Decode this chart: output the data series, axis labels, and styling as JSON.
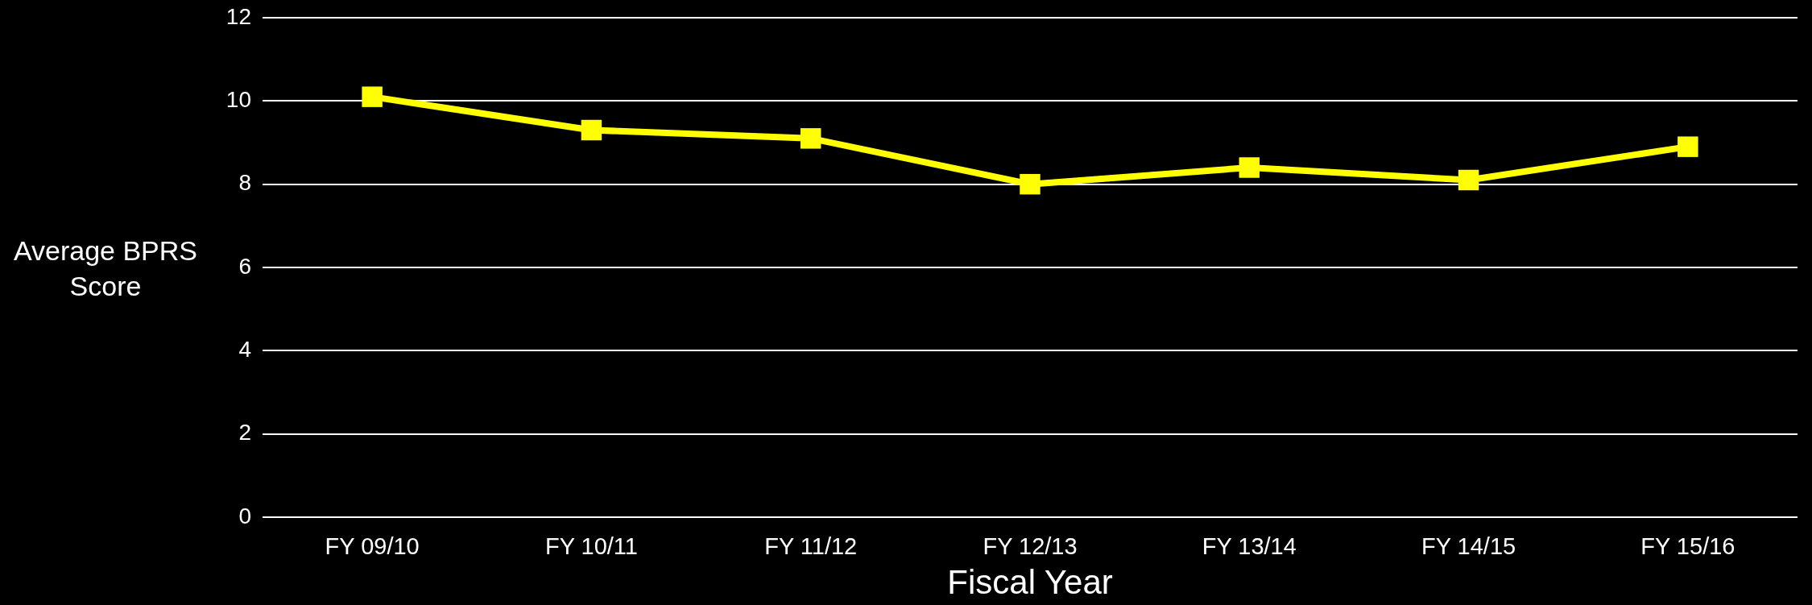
{
  "chart_data": {
    "type": "line",
    "xlabel": "Fiscal Year",
    "ylabel": "Average BPRS Score",
    "categories": [
      "FY 09/10",
      "FY 10/11",
      "FY 11/12",
      "FY 12/13",
      "FY 13/14",
      "FY 14/15",
      "FY 15/16"
    ],
    "series": [
      {
        "color": "#ffff00",
        "values": [
          10.1,
          9.3,
          9.1,
          8.0,
          8.4,
          8.1,
          8.9
        ]
      }
    ],
    "ylim": [
      0,
      12
    ],
    "yticks": [
      0,
      2,
      4,
      6,
      8,
      10,
      12
    ],
    "grid": "y",
    "marker": "square",
    "line_style": "solid"
  }
}
